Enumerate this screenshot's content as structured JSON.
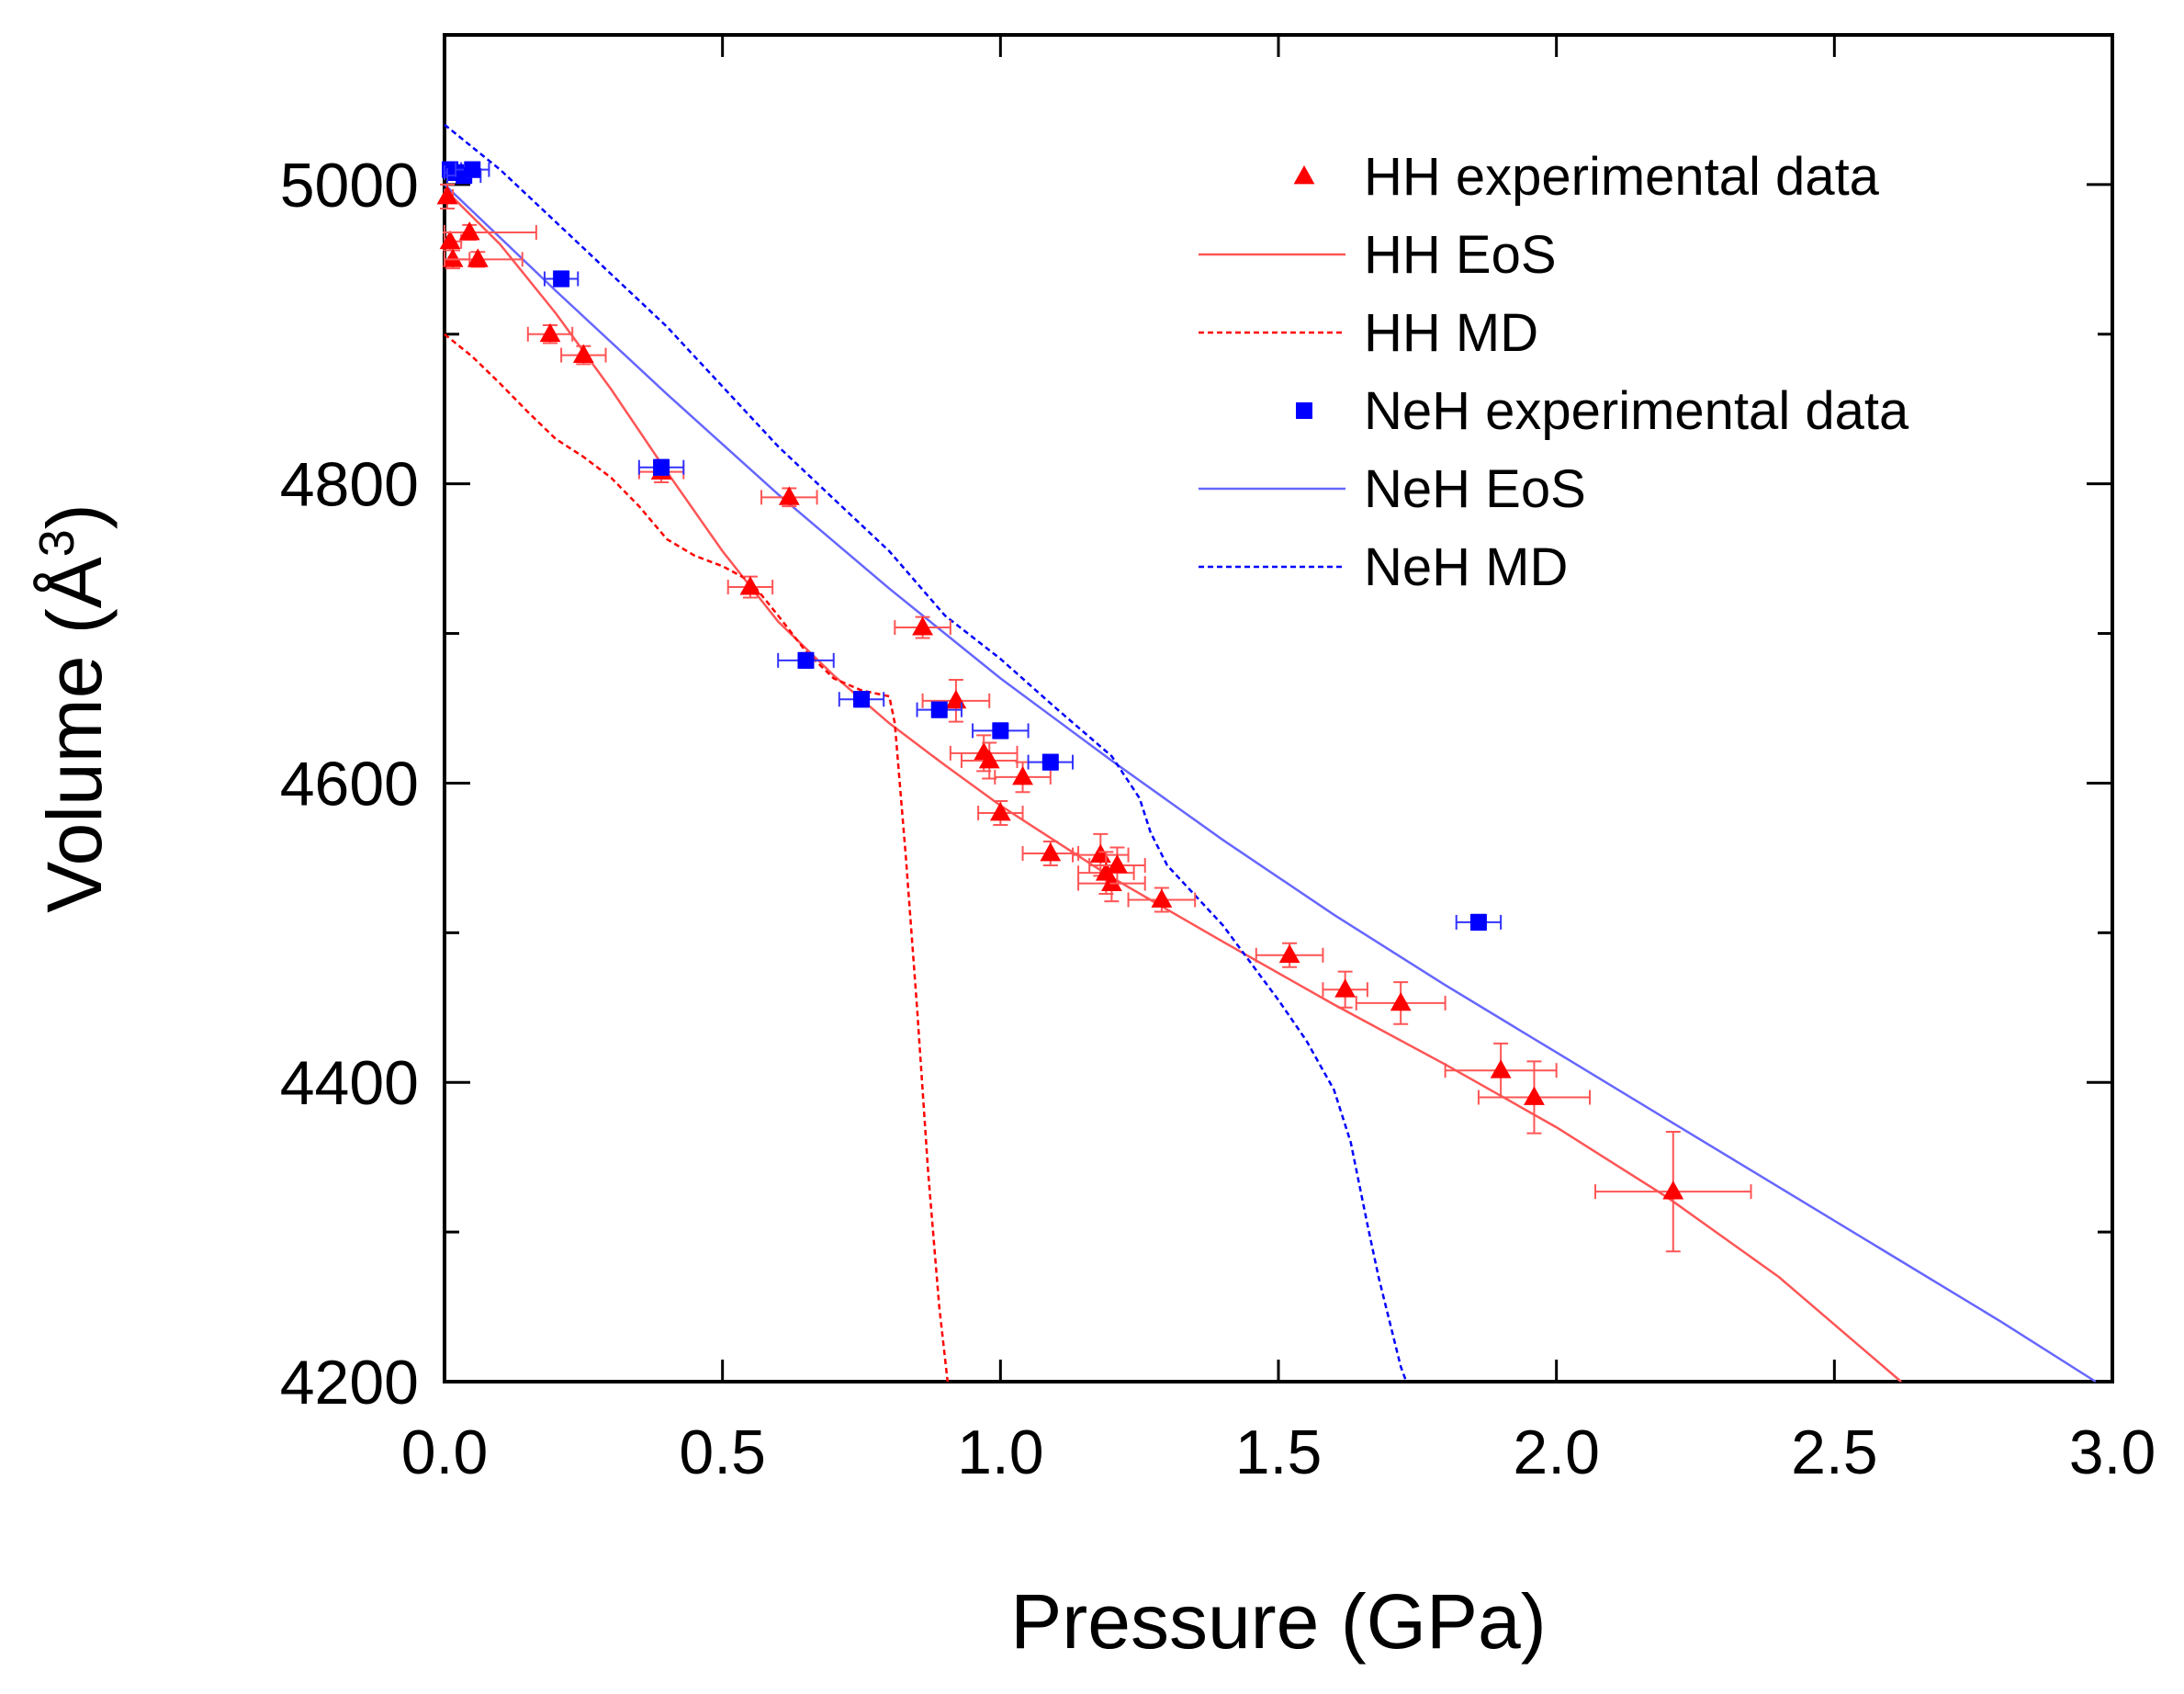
{
  "chart_data": {
    "type": "scatter",
    "xlabel": "Pressure (GPa)",
    "ylabel_main": "Volume (Å",
    "ylabel_sup": "3",
    "ylabel_close": ")",
    "xlim": [
      0.0,
      3.0
    ],
    "ylim": [
      4200,
      5100
    ],
    "x_ticks": [
      0.0,
      0.5,
      1.0,
      1.5,
      2.0,
      2.5,
      3.0
    ],
    "x_tick_labels": [
      "0.0",
      "0.5",
      "1.0",
      "1.5",
      "2.0",
      "2.5",
      "3.0"
    ],
    "y_ticks": [
      4200,
      4400,
      4600,
      4800,
      5000
    ],
    "y_tick_labels": [
      "4200",
      "4400",
      "4600",
      "4800",
      "5000"
    ],
    "y_minor_ticks": [
      4300,
      4500,
      4700,
      4900
    ],
    "grid": false,
    "legend_position": "top-right",
    "series": [
      {
        "name": "HH experimental data",
        "kind": "points",
        "marker": "triangle",
        "color": "#ff0000",
        "points": [
          {
            "x": 0.005,
            "y": 4992,
            "xerr": 0.01,
            "yerr": 8
          },
          {
            "x": 0.01,
            "y": 4962,
            "xerr": 0.02,
            "yerr": 6
          },
          {
            "x": 0.015,
            "y": 4950,
            "xerr": 0.03,
            "yerr": 6
          },
          {
            "x": 0.045,
            "y": 4968,
            "xerr": 0.12,
            "yerr": 5
          },
          {
            "x": 0.06,
            "y": 4950,
            "xerr": 0.08,
            "yerr": 5
          },
          {
            "x": 0.19,
            "y": 4900,
            "xerr": 0.04,
            "yerr": 6
          },
          {
            "x": 0.25,
            "y": 4886,
            "xerr": 0.04,
            "yerr": 6
          },
          {
            "x": 0.39,
            "y": 4808,
            "xerr": 0.04,
            "yerr": 7
          },
          {
            "x": 0.55,
            "y": 4731,
            "xerr": 0.04,
            "yerr": 7
          },
          {
            "x": 0.62,
            "y": 4791,
            "xerr": 0.05,
            "yerr": 6
          },
          {
            "x": 0.86,
            "y": 4704,
            "xerr": 0.05,
            "yerr": 7
          },
          {
            "x": 0.92,
            "y": 4655,
            "xerr": 0.06,
            "yerr": 14
          },
          {
            "x": 0.97,
            "y": 4620,
            "xerr": 0.06,
            "yerr": 12
          },
          {
            "x": 0.98,
            "y": 4615,
            "xerr": 0.05,
            "yerr": 12
          },
          {
            "x": 1.0,
            "y": 4580,
            "xerr": 0.04,
            "yerr": 8
          },
          {
            "x": 1.04,
            "y": 4604,
            "xerr": 0.05,
            "yerr": 10
          },
          {
            "x": 1.09,
            "y": 4553,
            "xerr": 0.05,
            "yerr": 8
          },
          {
            "x": 1.18,
            "y": 4552,
            "xerr": 0.05,
            "yerr": 14
          },
          {
            "x": 1.19,
            "y": 4540,
            "xerr": 0.05,
            "yerr": 14
          },
          {
            "x": 1.2,
            "y": 4533,
            "xerr": 0.06,
            "yerr": 12
          },
          {
            "x": 1.21,
            "y": 4545,
            "xerr": 0.05,
            "yerr": 12
          },
          {
            "x": 1.29,
            "y": 4522,
            "xerr": 0.06,
            "yerr": 8
          },
          {
            "x": 1.52,
            "y": 4485,
            "xerr": 0.06,
            "yerr": 8
          },
          {
            "x": 1.62,
            "y": 4462,
            "xerr": 0.04,
            "yerr": 12
          },
          {
            "x": 1.72,
            "y": 4453,
            "xerr": 0.08,
            "yerr": 14
          },
          {
            "x": 1.9,
            "y": 4408,
            "xerr": 0.1,
            "yerr": 18
          },
          {
            "x": 1.96,
            "y": 4390,
            "xerr": 0.1,
            "yerr": 24
          },
          {
            "x": 2.21,
            "y": 4327,
            "xerr": 0.14,
            "yerr": 40
          }
        ]
      },
      {
        "name": "HH EoS",
        "kind": "line",
        "style": "solid",
        "color": "#ff5555",
        "points": [
          [
            0.0,
            4997
          ],
          [
            0.1,
            4960
          ],
          [
            0.2,
            4914
          ],
          [
            0.3,
            4863
          ],
          [
            0.4,
            4808
          ],
          [
            0.5,
            4755
          ],
          [
            0.6,
            4708
          ],
          [
            0.7,
            4672
          ],
          [
            0.8,
            4640
          ],
          [
            0.9,
            4612
          ],
          [
            1.0,
            4585
          ],
          [
            1.2,
            4537
          ],
          [
            1.4,
            4494
          ],
          [
            1.6,
            4452
          ],
          [
            1.8,
            4412
          ],
          [
            2.0,
            4370
          ],
          [
            2.2,
            4323
          ],
          [
            2.4,
            4270
          ],
          [
            2.62,
            4200
          ]
        ]
      },
      {
        "name": "HH MD",
        "kind": "line",
        "style": "dashed",
        "color": "#ff0000",
        "points": [
          [
            0.0,
            4900
          ],
          [
            0.05,
            4885
          ],
          [
            0.1,
            4867
          ],
          [
            0.15,
            4848
          ],
          [
            0.2,
            4830
          ],
          [
            0.25,
            4818
          ],
          [
            0.3,
            4804
          ],
          [
            0.35,
            4785
          ],
          [
            0.4,
            4763
          ],
          [
            0.45,
            4752
          ],
          [
            0.5,
            4745
          ],
          [
            0.55,
            4735
          ],
          [
            0.6,
            4712
          ],
          [
            0.65,
            4688
          ],
          [
            0.7,
            4670
          ],
          [
            0.75,
            4662
          ],
          [
            0.8,
            4658
          ],
          [
            0.81,
            4640
          ],
          [
            0.83,
            4550
          ],
          [
            0.85,
            4450
          ],
          [
            0.87,
            4340
          ],
          [
            0.89,
            4250
          ],
          [
            0.905,
            4200
          ]
        ]
      },
      {
        "name": "NeH experimental data",
        "kind": "points",
        "marker": "square",
        "color": "#0000ff",
        "points": [
          {
            "x": 0.01,
            "y": 5010,
            "xerr": 0.02,
            "yerr": 5
          },
          {
            "x": 0.02,
            "y": 5008,
            "xerr": 0.02,
            "yerr": 5
          },
          {
            "x": 0.035,
            "y": 5006,
            "xerr": 0.03,
            "yerr": 5
          },
          {
            "x": 0.05,
            "y": 5010,
            "xerr": 0.03,
            "yerr": 5
          },
          {
            "x": 0.21,
            "y": 4937,
            "xerr": 0.03,
            "yerr": 5
          },
          {
            "x": 0.39,
            "y": 4811,
            "xerr": 0.04,
            "yerr": 5
          },
          {
            "x": 0.65,
            "y": 4682,
            "xerr": 0.05,
            "yerr": 5
          },
          {
            "x": 0.75,
            "y": 4656,
            "xerr": 0.04,
            "yerr": 5
          },
          {
            "x": 0.89,
            "y": 4649,
            "xerr": 0.04,
            "yerr": 5
          },
          {
            "x": 1.0,
            "y": 4635,
            "xerr": 0.05,
            "yerr": 5
          },
          {
            "x": 1.09,
            "y": 4614,
            "xerr": 0.04,
            "yerr": 5
          },
          {
            "x": 1.86,
            "y": 4507,
            "xerr": 0.04,
            "yerr": 5
          }
        ]
      },
      {
        "name": "NeH EoS",
        "kind": "line",
        "style": "solid",
        "color": "#6666ff",
        "points": [
          [
            0.0,
            5000
          ],
          [
            0.2,
            4929
          ],
          [
            0.4,
            4860
          ],
          [
            0.6,
            4793
          ],
          [
            0.8,
            4730
          ],
          [
            1.0,
            4670
          ],
          [
            1.2,
            4615
          ],
          [
            1.4,
            4562
          ],
          [
            1.6,
            4512
          ],
          [
            1.8,
            4465
          ],
          [
            2.0,
            4420
          ],
          [
            2.2,
            4375
          ],
          [
            2.4,
            4330
          ],
          [
            2.6,
            4285
          ],
          [
            2.8,
            4240
          ],
          [
            2.97,
            4200
          ]
        ]
      },
      {
        "name": "NeH MD",
        "kind": "line",
        "style": "dashed",
        "color": "#0000ff",
        "points": [
          [
            0.0,
            5040
          ],
          [
            0.1,
            5010
          ],
          [
            0.2,
            4975
          ],
          [
            0.3,
            4940
          ],
          [
            0.4,
            4905
          ],
          [
            0.5,
            4865
          ],
          [
            0.6,
            4825
          ],
          [
            0.7,
            4790
          ],
          [
            0.8,
            4755
          ],
          [
            0.9,
            4712
          ],
          [
            1.0,
            4683
          ],
          [
            1.1,
            4650
          ],
          [
            1.2,
            4618
          ],
          [
            1.25,
            4590
          ],
          [
            1.27,
            4567
          ],
          [
            1.3,
            4545
          ],
          [
            1.35,
            4525
          ],
          [
            1.4,
            4505
          ],
          [
            1.45,
            4480
          ],
          [
            1.5,
            4455
          ],
          [
            1.55,
            4428
          ],
          [
            1.6,
            4395
          ],
          [
            1.63,
            4360
          ],
          [
            1.66,
            4305
          ],
          [
            1.68,
            4270
          ],
          [
            1.7,
            4240
          ],
          [
            1.72,
            4210
          ],
          [
            1.73,
            4200
          ]
        ]
      }
    ]
  }
}
